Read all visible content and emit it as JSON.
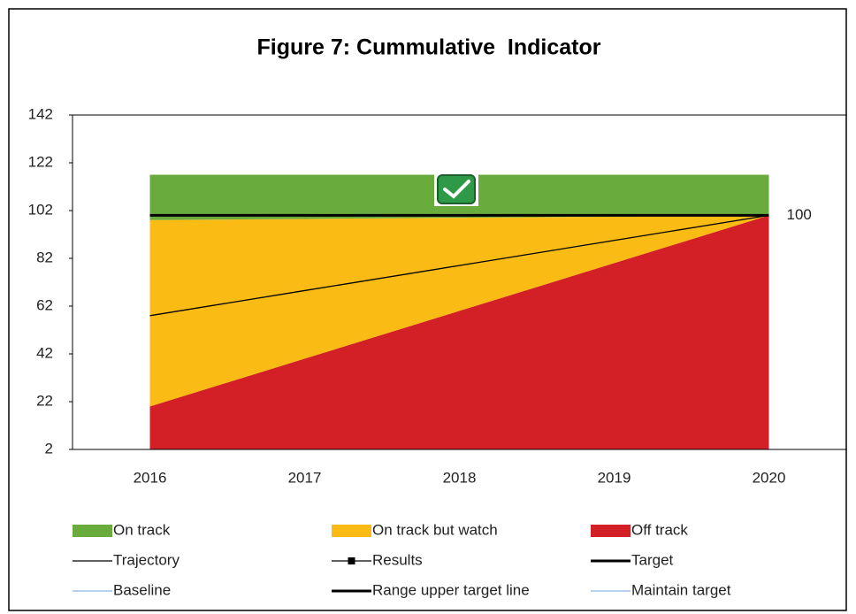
{
  "chart_data": {
    "type": "stacked_area_line",
    "title": "Figure 7: Cummulative  Indicator",
    "categories": [
      "2016",
      "2017",
      "2018",
      "2019",
      "2020"
    ],
    "ylim": [
      2,
      142
    ],
    "yticks": [
      2,
      22,
      42,
      62,
      82,
      102,
      122,
      142
    ],
    "series": [
      {
        "name": "On track",
        "kind": "area",
        "color": "#6aab3e",
        "values": [
          19,
          18.5,
          18,
          17.5,
          17
        ]
      },
      {
        "name": "On track but watch",
        "kind": "area",
        "color": "#fbbb15",
        "values": [
          78,
          58.5,
          39,
          19.5,
          0
        ]
      },
      {
        "name": "Off track",
        "kind": "area",
        "color": "#d32027",
        "values": [
          20,
          40,
          60,
          80,
          100
        ]
      },
      {
        "name": "Trajectory",
        "kind": "line",
        "color": "#000000",
        "line_width": 1.3,
        "values": [
          58,
          68.5,
          79,
          89.5,
          100
        ]
      },
      {
        "name": "Results",
        "kind": "line",
        "color": "#000000",
        "line_width": 1.3,
        "marker": "square",
        "values": [
          null,
          null,
          null,
          null,
          null
        ]
      },
      {
        "name": "Target",
        "kind": "line",
        "color": "#000000",
        "line_width": 3,
        "values": [
          100,
          100,
          100,
          100,
          100
        ],
        "end_label": true
      },
      {
        "name": "Baseline",
        "kind": "line",
        "color": "#8db3e2",
        "line_width": 1.3,
        "values": [
          null,
          null,
          null,
          null,
          null
        ]
      },
      {
        "name": "Range upper target line",
        "kind": "line",
        "color": "#000000",
        "line_width": 3,
        "values": [
          null,
          null,
          null,
          null,
          null
        ]
      },
      {
        "name": "Maintain target",
        "kind": "line",
        "color": "#8db3e2",
        "line_width": 1.3,
        "values": [
          null,
          null,
          null,
          null,
          null
        ]
      }
    ]
  }
}
